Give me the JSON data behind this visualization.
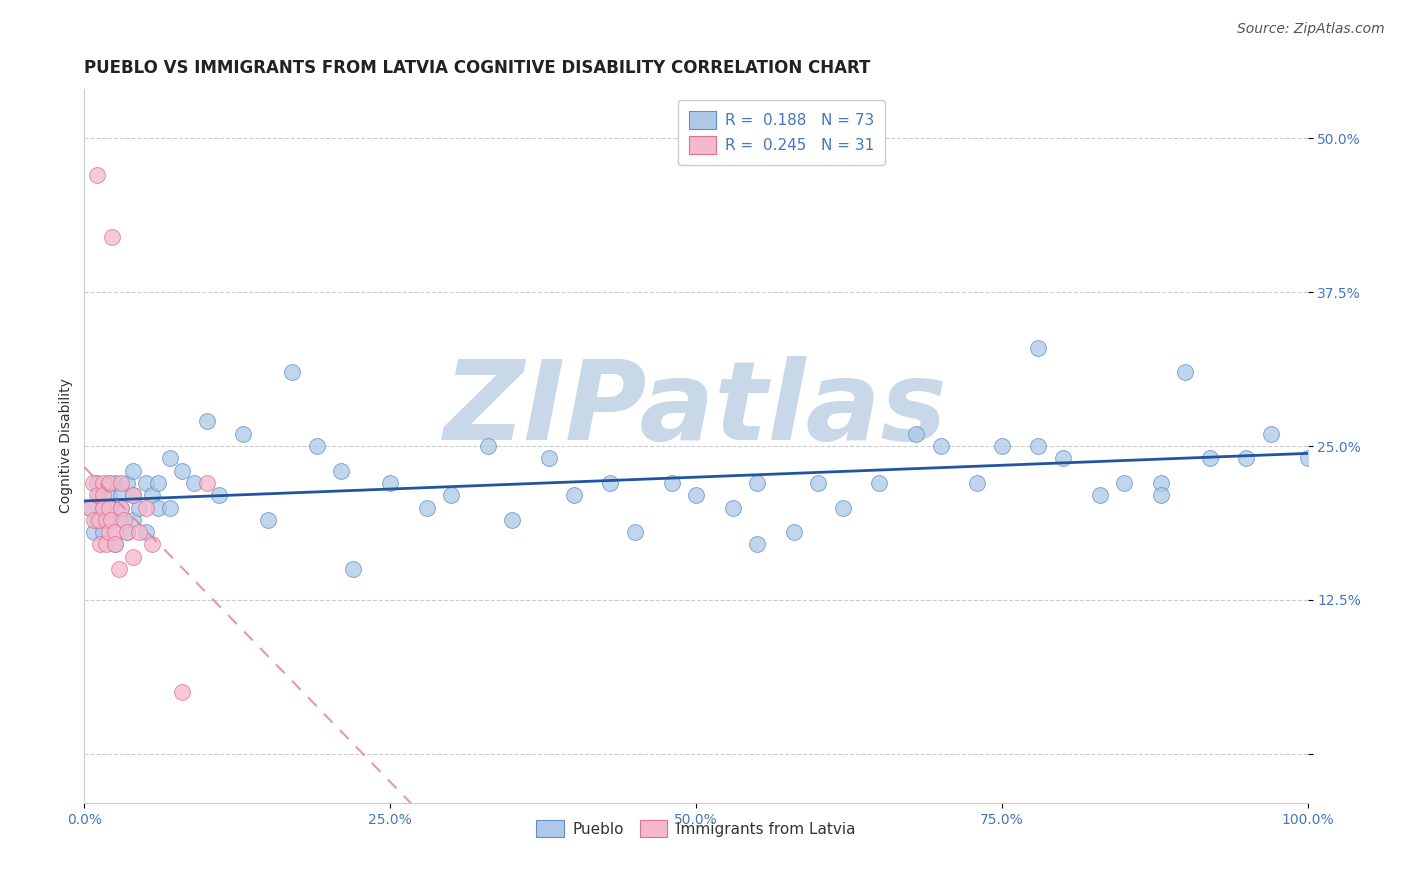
{
  "title": "PUEBLO VS IMMIGRANTS FROM LATVIA COGNITIVE DISABILITY CORRELATION CHART",
  "source": "Source: ZipAtlas.com",
  "ylabel": "Cognitive Disability",
  "xlabel": "",
  "R_blue": 0.188,
  "N_blue": 73,
  "R_pink": 0.245,
  "N_pink": 31,
  "blue_color": "#adc8e8",
  "blue_edge_color": "#6090c8",
  "blue_line_color": "#2255a0",
  "pink_color": "#f5b8cc",
  "pink_edge_color": "#e07090",
  "pink_line_color": "#e08098",
  "xlim": [
    0.0,
    1.0
  ],
  "ylim": [
    -0.04,
    0.54
  ],
  "ytick_vals": [
    0.0,
    0.125,
    0.25,
    0.375,
    0.5
  ],
  "ytick_labels": [
    "",
    "12.5%",
    "25.0%",
    "37.5%",
    "50.0%"
  ],
  "xtick_vals": [
    0.0,
    0.25,
    0.5,
    0.75,
    1.0
  ],
  "xtick_labels": [
    "0.0%",
    "25.0%",
    "50.0%",
    "75.0%",
    "100.0%"
  ],
  "tick_color": "#4477bb",
  "blue_x": [
    0.005,
    0.008,
    0.01,
    0.01,
    0.012,
    0.015,
    0.015,
    0.02,
    0.02,
    0.02,
    0.022,
    0.025,
    0.025,
    0.03,
    0.03,
    0.03,
    0.035,
    0.035,
    0.04,
    0.04,
    0.04,
    0.045,
    0.05,
    0.05,
    0.055,
    0.06,
    0.06,
    0.07,
    0.07,
    0.08,
    0.09,
    0.1,
    0.11,
    0.13,
    0.15,
    0.17,
    0.19,
    0.21,
    0.22,
    0.25,
    0.28,
    0.3,
    0.33,
    0.35,
    0.38,
    0.4,
    0.43,
    0.45,
    0.48,
    0.5,
    0.53,
    0.55,
    0.58,
    0.6,
    0.62,
    0.65,
    0.68,
    0.7,
    0.73,
    0.75,
    0.78,
    0.8,
    0.83,
    0.85,
    0.88,
    0.9,
    0.92,
    0.95,
    0.97,
    1.0,
    0.55,
    0.78,
    0.88
  ],
  "blue_y": [
    0.2,
    0.18,
    0.22,
    0.19,
    0.21,
    0.18,
    0.2,
    0.22,
    0.19,
    0.21,
    0.2,
    0.17,
    0.22,
    0.19,
    0.21,
    0.2,
    0.18,
    0.22,
    0.19,
    0.21,
    0.23,
    0.2,
    0.22,
    0.18,
    0.21,
    0.2,
    0.22,
    0.24,
    0.2,
    0.23,
    0.22,
    0.27,
    0.21,
    0.26,
    0.19,
    0.31,
    0.25,
    0.23,
    0.15,
    0.22,
    0.2,
    0.21,
    0.25,
    0.19,
    0.24,
    0.21,
    0.22,
    0.18,
    0.22,
    0.21,
    0.2,
    0.22,
    0.18,
    0.22,
    0.2,
    0.22,
    0.26,
    0.25,
    0.22,
    0.25,
    0.25,
    0.24,
    0.21,
    0.22,
    0.22,
    0.31,
    0.24,
    0.24,
    0.26,
    0.24,
    0.17,
    0.33,
    0.21
  ],
  "pink_x": [
    0.005,
    0.007,
    0.008,
    0.01,
    0.01,
    0.012,
    0.013,
    0.015,
    0.015,
    0.015,
    0.018,
    0.018,
    0.02,
    0.02,
    0.02,
    0.022,
    0.023,
    0.025,
    0.025,
    0.028,
    0.03,
    0.03,
    0.032,
    0.035,
    0.04,
    0.04,
    0.045,
    0.05,
    0.055,
    0.08,
    0.1
  ],
  "pink_y": [
    0.2,
    0.22,
    0.19,
    0.47,
    0.21,
    0.19,
    0.17,
    0.22,
    0.21,
    0.2,
    0.19,
    0.17,
    0.22,
    0.2,
    0.18,
    0.19,
    0.42,
    0.18,
    0.17,
    0.15,
    0.22,
    0.2,
    0.19,
    0.18,
    0.21,
    0.16,
    0.18,
    0.2,
    0.17,
    0.05,
    0.22
  ],
  "watermark": "ZIPatlas",
  "watermark_color": "#c8d8e8",
  "title_fontsize": 12,
  "axis_label_fontsize": 10,
  "tick_fontsize": 10,
  "legend_fontsize": 11,
  "source_fontsize": 10
}
